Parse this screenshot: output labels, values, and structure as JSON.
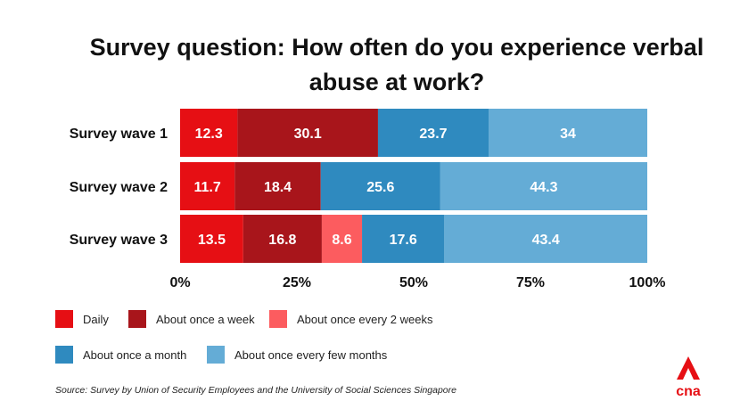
{
  "chart_data": {
    "type": "bar",
    "orientation": "horizontal",
    "stacked": true,
    "title": "Survey question: How often do you experience verbal abuse at work?",
    "categories": [
      "Survey wave 1",
      "Survey wave 2",
      "Survey wave 3"
    ],
    "series": [
      {
        "name": "Daily",
        "color": "#e60f14",
        "values": [
          12.3,
          11.7,
          13.5
        ]
      },
      {
        "name": "About once a week",
        "color": "#a8151b",
        "values": [
          30.1,
          18.4,
          16.8
        ]
      },
      {
        "name": "About once every 2 weeks",
        "color": "#fc5c5f",
        "values": [
          null,
          null,
          8.6
        ]
      },
      {
        "name": "About once a month",
        "color": "#2f8abf",
        "values": [
          23.7,
          25.6,
          17.6
        ]
      },
      {
        "name": "About once every few months",
        "color": "#64acd6",
        "values": [
          34,
          44.3,
          43.4
        ]
      }
    ],
    "xlim": [
      0,
      100
    ],
    "xticks": [
      "0%",
      "25%",
      "50%",
      "75%",
      "100%"
    ],
    "grid": false,
    "legend_position": "bottom"
  },
  "source": "Source: Survey by Union of Security Employees and the University of Social Sciences Singapore",
  "logo": {
    "text": "cna",
    "icon": "cna-logo-icon",
    "color": "#e60f14"
  }
}
